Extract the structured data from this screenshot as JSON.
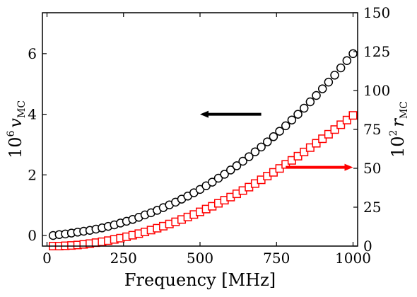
{
  "chart_data": {
    "type": "scatter",
    "xlabel": "Frequency [MHz]",
    "ylabel_left": {
      "prefix": "10",
      "exp": "6",
      "var": "v",
      "sub": "MC"
    },
    "ylabel_right": {
      "prefix": "10",
      "exp": "2",
      "var": "r",
      "sub": "MC"
    },
    "xlim": [
      -15,
      1015
    ],
    "ylim_left": [
      -0.35,
      7.35
    ],
    "ylim_right": [
      0,
      150
    ],
    "x_ticks": [
      0,
      250,
      500,
      750,
      1000
    ],
    "y_left_ticks": [
      0,
      2,
      4,
      6
    ],
    "y_right_ticks": [
      0,
      25,
      50,
      75,
      100,
      125,
      150
    ],
    "grid": false,
    "series": [
      {
        "axis": "left",
        "marker": "circle",
        "color": "#000000",
        "x": [
          20,
          40,
          60,
          80,
          100,
          120,
          140,
          160,
          180,
          200,
          220,
          240,
          260,
          280,
          300,
          320,
          340,
          360,
          380,
          400,
          420,
          440,
          460,
          480,
          500,
          520,
          540,
          560,
          580,
          600,
          620,
          640,
          660,
          680,
          700,
          720,
          740,
          760,
          780,
          800,
          820,
          840,
          860,
          880,
          900,
          920,
          940,
          960,
          980,
          1000
        ],
        "y": [
          0.0,
          0.03,
          0.05,
          0.08,
          0.11,
          0.14,
          0.17,
          0.21,
          0.25,
          0.3,
          0.35,
          0.41,
          0.47,
          0.53,
          0.6,
          0.68,
          0.75,
          0.83,
          0.92,
          1.01,
          1.1,
          1.2,
          1.3,
          1.41,
          1.52,
          1.64,
          1.76,
          1.89,
          2.02,
          2.16,
          2.3,
          2.45,
          2.6,
          2.76,
          2.92,
          3.09,
          3.26,
          3.44,
          3.62,
          3.81,
          4.0,
          4.2,
          4.41,
          4.62,
          4.84,
          5.06,
          5.29,
          5.53,
          5.77,
          6.0
        ]
      },
      {
        "axis": "right",
        "marker": "square",
        "color": "#ff0000",
        "x": [
          20,
          40,
          60,
          80,
          100,
          120,
          140,
          160,
          180,
          200,
          220,
          240,
          260,
          280,
          300,
          320,
          340,
          360,
          380,
          400,
          420,
          440,
          460,
          480,
          500,
          520,
          540,
          560,
          580,
          600,
          620,
          640,
          660,
          680,
          700,
          720,
          740,
          760,
          780,
          800,
          820,
          840,
          860,
          880,
          900,
          920,
          940,
          960,
          980,
          1000
        ],
        "y": [
          0.0,
          0.0,
          0.2,
          0.4,
          0.7,
          1.1,
          1.6,
          2.2,
          2.8,
          3.5,
          4.3,
          5.1,
          6.0,
          7.0,
          8.0,
          9.1,
          10.3,
          11.5,
          12.8,
          14.2,
          15.6,
          17.1,
          18.7,
          20.3,
          22.0,
          23.8,
          25.6,
          27.5,
          29.5,
          31.5,
          33.6,
          35.7,
          37.9,
          40.2,
          42.6,
          45.0,
          47.4,
          49.9,
          52.5,
          55.1,
          57.8,
          60.5,
          63.3,
          66.1,
          69.0,
          71.9,
          74.9,
          78.0,
          81.0,
          84.0
        ]
      }
    ],
    "annotations": [
      {
        "type": "arrow",
        "color": "#000000",
        "direction": "left",
        "from": [
          700,
          4.0
        ],
        "to": [
          500,
          4.0
        ],
        "axis": "left"
      },
      {
        "type": "arrow",
        "color": "#ff0000",
        "direction": "right",
        "from": [
          780,
          2.25
        ],
        "to": [
          1000,
          2.25
        ],
        "axis": "left"
      }
    ]
  }
}
